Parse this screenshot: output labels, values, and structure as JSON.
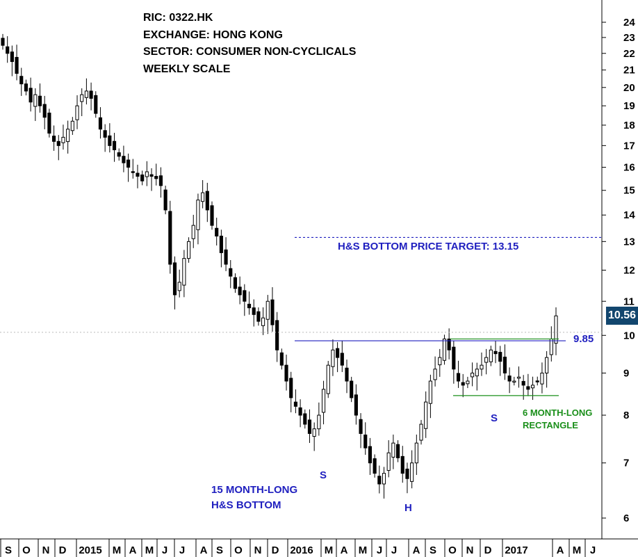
{
  "header": {
    "ric": "RIC: 0322.HK",
    "exchange": "EXCHANGE: HONG KONG",
    "sector": "SECTOR: CONSUMER NON-CYCLICALS",
    "scale": "WEEKLY SCALE"
  },
  "annotations": {
    "target": "H&S BOTTOM PRICE TARGET: 13.15",
    "neckline_value": "9.85",
    "hs_line1": "15 MONTH-LONG",
    "hs_line2": "H&S BOTTOM",
    "rect_line1": "6 MONTH-LONG",
    "rect_line2": "RECTANGLE",
    "left_shoulder": "S",
    "head": "H",
    "right_shoulder": "S"
  },
  "last_price": "10.56",
  "colors": {
    "annotation_blue": "#1f1fbf",
    "annotation_green": "#1a8f1a",
    "last_price_box": "#12466e",
    "candle_outline": "#000000"
  },
  "chart_data": {
    "type": "candlestick",
    "title": "",
    "scale": "log",
    "ylim": [
      5.7,
      25
    ],
    "y_ticks": [
      6,
      7,
      8,
      9,
      10,
      11,
      12,
      13,
      14,
      15,
      16,
      17,
      18,
      19,
      20,
      21,
      22,
      23,
      24
    ],
    "x_ticks": [
      "S",
      "O",
      "N",
      "D",
      "2015",
      "M",
      "A",
      "M",
      "J",
      "J",
      "A",
      "S",
      "O",
      "N",
      "D",
      "2016",
      "M",
      "A",
      "M",
      "J",
      "J",
      "A",
      "S",
      "O",
      "N",
      "D",
      "2017",
      "A",
      "M",
      "J"
    ],
    "grid": false,
    "levels": {
      "price_target": 13.15,
      "neckline": 9.85,
      "rectangle_top": 9.9,
      "rectangle_bottom": 8.45,
      "last_close": 10.56
    },
    "close_series": [
      22.5,
      22.0,
      21.5,
      20.8,
      20.2,
      19.8,
      19.2,
      19.6,
      19.0,
      18.4,
      17.6,
      17.2,
      17.0,
      17.4,
      17.8,
      18.2,
      19.0,
      19.6,
      19.8,
      19.4,
      18.6,
      17.8,
      17.4,
      17.0,
      16.8,
      16.5,
      16.2,
      16.0,
      15.8,
      15.6,
      15.4,
      15.8,
      15.6,
      15.5,
      15.2,
      14.2,
      12.2,
      11.2,
      11.6,
      12.4,
      13.0,
      13.6,
      14.6,
      14.9,
      14.2,
      13.6,
      13.2,
      12.6,
      12.2,
      11.8,
      11.4,
      11.2,
      11.0,
      10.8,
      10.6,
      10.4,
      10.5,
      11.0,
      10.3,
      9.6,
      9.2,
      8.8,
      8.4,
      8.2,
      8.0,
      7.8,
      7.6,
      7.7,
      8.0,
      8.6,
      9.2,
      9.6,
      9.4,
      9.2,
      8.8,
      8.4,
      8.0,
      7.6,
      7.3,
      7.0,
      6.8,
      6.6,
      6.8,
      7.2,
      7.4,
      7.1,
      6.8,
      6.7,
      7.0,
      7.4,
      7.8,
      8.3,
      8.8,
      9.1,
      9.4,
      9.9,
      9.6,
      9.1,
      8.8,
      8.7,
      8.8,
      9.0,
      9.1,
      9.2,
      9.4,
      9.6,
      9.5,
      9.3,
      9.0,
      8.8,
      8.8,
      8.9,
      8.7,
      8.6,
      8.7,
      8.8,
      9.0,
      9.4,
      9.9,
      10.56
    ]
  }
}
